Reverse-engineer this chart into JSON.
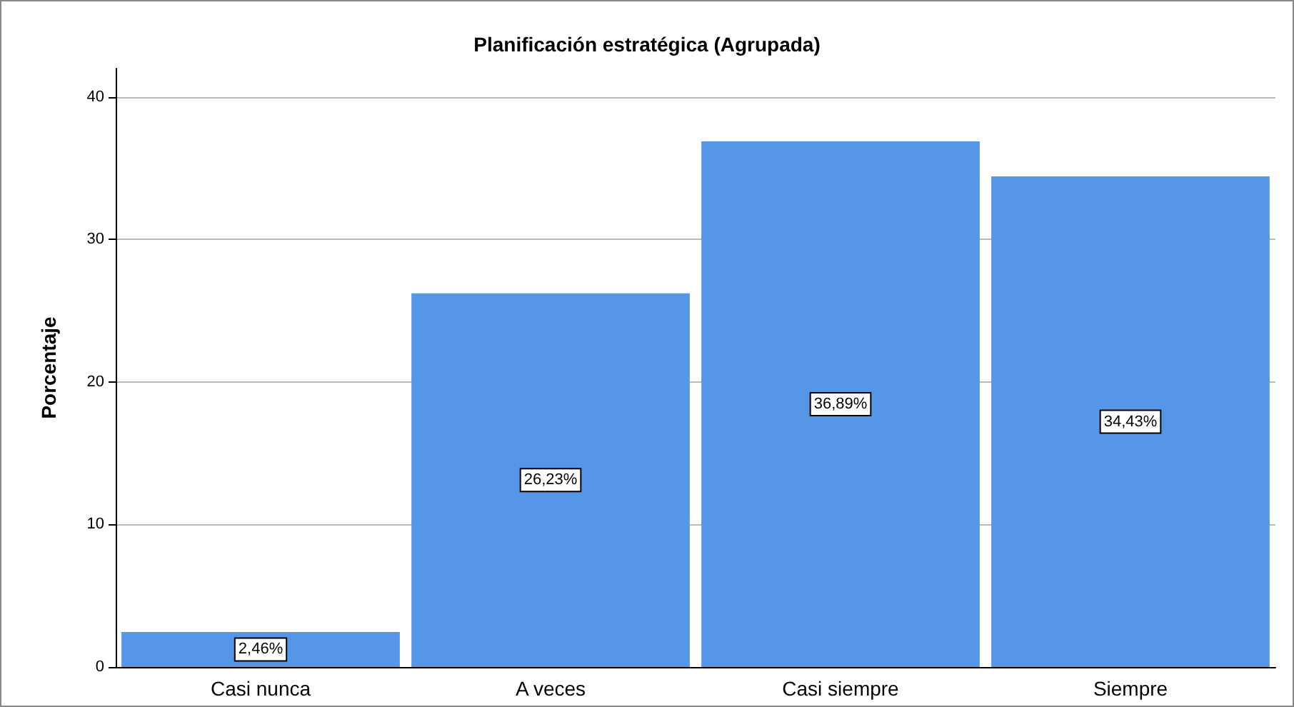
{
  "chart_data": {
    "type": "bar",
    "title": "Planificación estratégica (Agrupada)",
    "ylabel": "Porcentaje",
    "categories": [
      "Casi nunca",
      "A veces",
      "Casi siempre",
      "Siempre"
    ],
    "values": [
      2.46,
      26.23,
      36.89,
      34.43
    ],
    "value_labels": [
      "2,46%",
      "26,23%",
      "36,89%",
      "34,43%"
    ],
    "color": "#5596e6",
    "ylim": [
      0,
      42
    ],
    "yticks": [
      0,
      10,
      20,
      30,
      40
    ],
    "grid": "y"
  }
}
